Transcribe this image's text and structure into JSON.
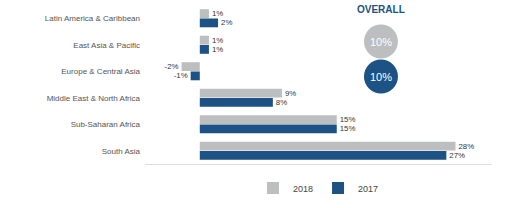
{
  "chart_data": {
    "type": "bar",
    "orientation": "horizontal",
    "categories": [
      "Latin America & Caribbean",
      "East Asia & Pacific",
      "Europe & Central Asia",
      "Middle East & North Africa",
      "Sub-Saharan Africa",
      "South Asia"
    ],
    "series": [
      {
        "name": "2018",
        "color": "#bcbec0",
        "values": [
          1,
          1,
          -2,
          9,
          15,
          28
        ],
        "value_labels": [
          "1%",
          "1%",
          "-2%",
          "9%",
          "15%",
          "28%"
        ],
        "overall": 10,
        "overall_label": "10%"
      },
      {
        "name": "2017",
        "color": "#1c5284",
        "values": [
          2,
          1,
          -1,
          8,
          15,
          27
        ],
        "value_labels": [
          "2%",
          "1%",
          "-1%",
          "8%",
          "15%",
          "27%"
        ],
        "overall": 10,
        "overall_label": "10%"
      }
    ],
    "overall_title": "OVERALL",
    "xlim": [
      -6,
      32
    ],
    "xticks": [],
    "grid": false,
    "data_labels": true,
    "tick_labels": "y",
    "legend": "bottom"
  }
}
